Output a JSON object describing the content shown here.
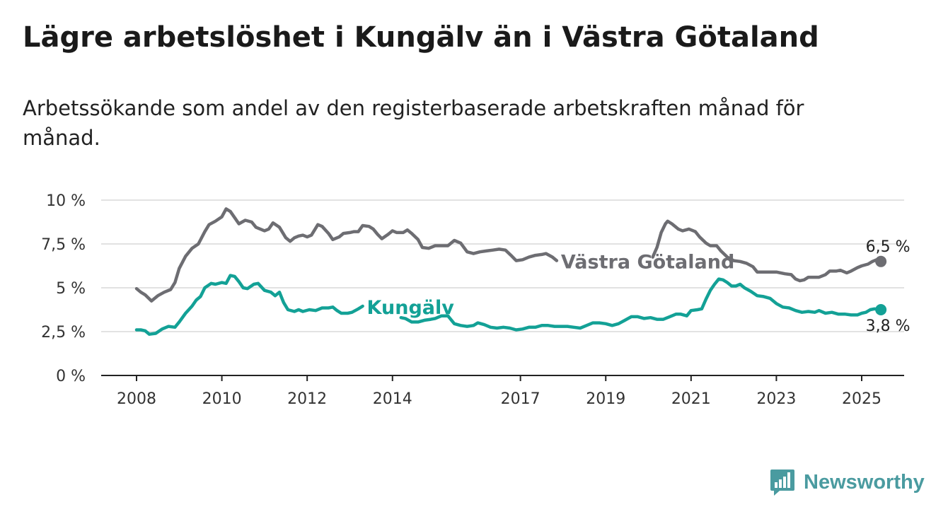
{
  "header": {
    "title": "Lägre arbetslöshet i Kungälv än i Västra Götaland",
    "subtitle": "Arbetssökande som andel av den registerbaserade arbetskraften månad för månad."
  },
  "brand": {
    "name": "Newsworthy",
    "color": "#4a9ba0",
    "icon": "bar-chart-speech-icon"
  },
  "chart_data": {
    "type": "line",
    "title": "Lägre arbetslöshet i Kungälv än i Västra Götaland",
    "subtitle": "Arbetssökande som andel av den registerbaserade arbetskraften månad för månad.",
    "xlim": [
      2007.85,
      2026.0
    ],
    "ylim": [
      0,
      10
    ],
    "yticks": [
      0,
      2.5,
      5,
      7.5,
      10
    ],
    "ytick_labels": [
      "0 %",
      "2,5 %",
      "5 %",
      "7,5 %",
      "10 %"
    ],
    "xticks": [
      2008,
      2010,
      2012,
      2014,
      2017,
      2019,
      2021,
      2023,
      2025
    ],
    "xtick_labels": [
      "2008",
      "2010",
      "2012",
      "2014",
      "2017",
      "2019",
      "2021",
      "2023",
      "2025"
    ],
    "grid": true,
    "legend": "inline labels",
    "series": [
      {
        "name": "Västra Götaland",
        "color": "#6d6d72",
        "end_label": "6,5 %",
        "points": [
          [
            2008.0,
            4.95
          ],
          [
            2008.1,
            4.75
          ],
          [
            2008.2,
            4.6
          ],
          [
            2008.35,
            4.25
          ],
          [
            2008.5,
            4.55
          ],
          [
            2008.65,
            4.75
          ],
          [
            2008.8,
            4.9
          ],
          [
            2008.9,
            5.3
          ],
          [
            2009.0,
            6.1
          ],
          [
            2009.15,
            6.8
          ],
          [
            2009.3,
            7.25
          ],
          [
            2009.45,
            7.5
          ],
          [
            2009.6,
            8.2
          ],
          [
            2009.7,
            8.6
          ],
          [
            2009.85,
            8.8
          ],
          [
            2010.0,
            9.05
          ],
          [
            2010.1,
            9.5
          ],
          [
            2010.2,
            9.35
          ],
          [
            2010.3,
            9.0
          ],
          [
            2010.4,
            8.65
          ],
          [
            2010.55,
            8.85
          ],
          [
            2010.7,
            8.75
          ],
          [
            2010.8,
            8.45
          ],
          [
            2011.0,
            8.25
          ],
          [
            2011.1,
            8.35
          ],
          [
            2011.2,
            8.7
          ],
          [
            2011.35,
            8.45
          ],
          [
            2011.5,
            7.85
          ],
          [
            2011.6,
            7.65
          ],
          [
            2011.7,
            7.85
          ],
          [
            2011.8,
            7.95
          ],
          [
            2011.9,
            8.0
          ],
          [
            2012.0,
            7.9
          ],
          [
            2012.1,
            8.0
          ],
          [
            2012.25,
            8.6
          ],
          [
            2012.35,
            8.5
          ],
          [
            2012.5,
            8.1
          ],
          [
            2012.6,
            7.75
          ],
          [
            2012.75,
            7.9
          ],
          [
            2012.85,
            8.1
          ],
          [
            2013.0,
            8.15
          ],
          [
            2013.1,
            8.2
          ],
          [
            2013.2,
            8.2
          ],
          [
            2013.3,
            8.55
          ],
          [
            2013.45,
            8.5
          ],
          [
            2013.55,
            8.35
          ],
          [
            2013.65,
            8.05
          ],
          [
            2013.75,
            7.8
          ],
          [
            2013.9,
            8.05
          ],
          [
            2014.0,
            8.25
          ],
          [
            2014.1,
            8.15
          ],
          [
            2014.25,
            8.15
          ],
          [
            2014.35,
            8.3
          ],
          [
            2014.45,
            8.1
          ],
          [
            2014.6,
            7.75
          ],
          [
            2014.7,
            7.3
          ],
          [
            2014.85,
            7.25
          ],
          [
            2015.0,
            7.4
          ],
          [
            2015.15,
            7.4
          ],
          [
            2015.3,
            7.4
          ],
          [
            2015.45,
            7.7
          ],
          [
            2015.6,
            7.55
          ],
          [
            2015.75,
            7.05
          ],
          [
            2015.9,
            6.95
          ],
          [
            2016.05,
            7.05
          ],
          [
            2016.2,
            7.1
          ],
          [
            2016.35,
            7.15
          ],
          [
            2016.5,
            7.2
          ],
          [
            2016.65,
            7.15
          ],
          [
            2016.8,
            6.8
          ],
          [
            2016.9,
            6.55
          ],
          [
            2017.05,
            6.6
          ],
          [
            2017.2,
            6.75
          ],
          [
            2017.35,
            6.85
          ],
          [
            2017.5,
            6.9
          ],
          [
            2017.6,
            6.95
          ],
          [
            2017.75,
            6.75
          ],
          [
            2017.85,
            6.55
          ]
        ],
        "points_2": [
          [
            2020.1,
            6.75
          ],
          [
            2020.2,
            7.3
          ],
          [
            2020.3,
            8.15
          ],
          [
            2020.4,
            8.65
          ],
          [
            2020.45,
            8.8
          ],
          [
            2020.55,
            8.65
          ],
          [
            2020.7,
            8.35
          ],
          [
            2020.8,
            8.25
          ],
          [
            2020.95,
            8.35
          ],
          [
            2021.1,
            8.2
          ],
          [
            2021.2,
            7.9
          ],
          [
            2021.35,
            7.55
          ],
          [
            2021.45,
            7.4
          ],
          [
            2021.6,
            7.4
          ],
          [
            2021.7,
            7.1
          ],
          [
            2021.85,
            6.75
          ],
          [
            2022.0,
            6.55
          ],
          [
            2022.15,
            6.5
          ],
          [
            2022.3,
            6.4
          ],
          [
            2022.45,
            6.2
          ],
          [
            2022.55,
            5.9
          ],
          [
            2022.7,
            5.9
          ],
          [
            2022.85,
            5.9
          ],
          [
            2023.0,
            5.9
          ],
          [
            2023.1,
            5.85
          ],
          [
            2023.2,
            5.8
          ],
          [
            2023.35,
            5.75
          ],
          [
            2023.45,
            5.5
          ],
          [
            2023.55,
            5.4
          ],
          [
            2023.65,
            5.45
          ],
          [
            2023.75,
            5.6
          ],
          [
            2023.9,
            5.6
          ],
          [
            2024.0,
            5.6
          ],
          [
            2024.15,
            5.75
          ],
          [
            2024.25,
            5.95
          ],
          [
            2024.4,
            5.95
          ],
          [
            2024.5,
            6.0
          ],
          [
            2024.65,
            5.85
          ],
          [
            2024.75,
            5.95
          ],
          [
            2024.9,
            6.15
          ],
          [
            2025.0,
            6.25
          ],
          [
            2025.15,
            6.35
          ],
          [
            2025.25,
            6.5
          ],
          [
            2025.35,
            6.6
          ],
          [
            2025.45,
            6.5
          ]
        ]
      },
      {
        "name": "Kungälv",
        "color": "#13a196",
        "end_label": "3,8 %",
        "points": [
          [
            2008.0,
            2.6
          ],
          [
            2008.1,
            2.6
          ],
          [
            2008.2,
            2.55
          ],
          [
            2008.3,
            2.35
          ],
          [
            2008.45,
            2.4
          ],
          [
            2008.6,
            2.65
          ],
          [
            2008.75,
            2.8
          ],
          [
            2008.9,
            2.75
          ],
          [
            2009.0,
            3.05
          ],
          [
            2009.15,
            3.55
          ],
          [
            2009.3,
            3.95
          ],
          [
            2009.4,
            4.3
          ],
          [
            2009.5,
            4.5
          ],
          [
            2009.6,
            5.0
          ],
          [
            2009.75,
            5.25
          ],
          [
            2009.85,
            5.2
          ],
          [
            2010.0,
            5.3
          ],
          [
            2010.1,
            5.25
          ],
          [
            2010.2,
            5.7
          ],
          [
            2010.3,
            5.65
          ],
          [
            2010.4,
            5.35
          ],
          [
            2010.5,
            5.0
          ],
          [
            2010.6,
            4.95
          ],
          [
            2010.75,
            5.2
          ],
          [
            2010.85,
            5.25
          ],
          [
            2011.0,
            4.85
          ],
          [
            2011.15,
            4.75
          ],
          [
            2011.25,
            4.55
          ],
          [
            2011.35,
            4.75
          ],
          [
            2011.45,
            4.15
          ],
          [
            2011.55,
            3.75
          ],
          [
            2011.7,
            3.65
          ],
          [
            2011.8,
            3.75
          ],
          [
            2011.9,
            3.65
          ],
          [
            2012.05,
            3.75
          ],
          [
            2012.2,
            3.7
          ],
          [
            2012.35,
            3.85
          ],
          [
            2012.5,
            3.85
          ],
          [
            2012.6,
            3.9
          ],
          [
            2012.7,
            3.7
          ],
          [
            2012.8,
            3.55
          ],
          [
            2012.95,
            3.55
          ],
          [
            2013.05,
            3.6
          ],
          [
            2013.2,
            3.8
          ],
          [
            2013.3,
            3.95
          ]
        ],
        "points_2": [
          [
            2014.2,
            3.3
          ],
          [
            2014.3,
            3.25
          ],
          [
            2014.45,
            3.05
          ],
          [
            2014.6,
            3.05
          ],
          [
            2014.75,
            3.15
          ],
          [
            2014.9,
            3.2
          ],
          [
            2015.0,
            3.25
          ],
          [
            2015.15,
            3.4
          ],
          [
            2015.3,
            3.4
          ],
          [
            2015.45,
            2.95
          ],
          [
            2015.6,
            2.85
          ],
          [
            2015.75,
            2.8
          ],
          [
            2015.9,
            2.85
          ],
          [
            2016.0,
            3.0
          ],
          [
            2016.15,
            2.9
          ],
          [
            2016.3,
            2.75
          ],
          [
            2016.45,
            2.7
          ],
          [
            2016.6,
            2.75
          ],
          [
            2016.75,
            2.7
          ],
          [
            2016.9,
            2.6
          ],
          [
            2017.05,
            2.65
          ],
          [
            2017.2,
            2.75
          ],
          [
            2017.35,
            2.75
          ],
          [
            2017.5,
            2.85
          ],
          [
            2017.65,
            2.85
          ],
          [
            2017.8,
            2.8
          ],
          [
            2017.95,
            2.8
          ],
          [
            2018.1,
            2.8
          ],
          [
            2018.25,
            2.75
          ],
          [
            2018.4,
            2.7
          ],
          [
            2018.55,
            2.85
          ],
          [
            2018.7,
            3.0
          ],
          [
            2018.85,
            3.0
          ],
          [
            2019.0,
            2.95
          ],
          [
            2019.15,
            2.85
          ],
          [
            2019.3,
            2.95
          ],
          [
            2019.45,
            3.15
          ],
          [
            2019.6,
            3.35
          ],
          [
            2019.75,
            3.35
          ],
          [
            2019.9,
            3.25
          ],
          [
            2020.05,
            3.3
          ],
          [
            2020.2,
            3.2
          ],
          [
            2020.35,
            3.2
          ],
          [
            2020.5,
            3.35
          ],
          [
            2020.65,
            3.5
          ],
          [
            2020.75,
            3.5
          ],
          [
            2020.9,
            3.4
          ],
          [
            2021.0,
            3.7
          ],
          [
            2021.15,
            3.75
          ],
          [
            2021.25,
            3.8
          ],
          [
            2021.35,
            4.35
          ],
          [
            2021.45,
            4.85
          ],
          [
            2021.55,
            5.2
          ],
          [
            2021.65,
            5.5
          ],
          [
            2021.75,
            5.45
          ],
          [
            2021.85,
            5.3
          ],
          [
            2021.95,
            5.1
          ],
          [
            2022.05,
            5.1
          ],
          [
            2022.15,
            5.2
          ],
          [
            2022.25,
            5.0
          ],
          [
            2022.4,
            4.8
          ],
          [
            2022.55,
            4.55
          ],
          [
            2022.7,
            4.5
          ],
          [
            2022.85,
            4.4
          ],
          [
            2023.0,
            4.1
          ],
          [
            2023.15,
            3.9
          ],
          [
            2023.3,
            3.85
          ],
          [
            2023.45,
            3.7
          ],
          [
            2023.6,
            3.6
          ],
          [
            2023.75,
            3.65
          ],
          [
            2023.9,
            3.6
          ],
          [
            2024.0,
            3.7
          ],
          [
            2024.15,
            3.55
          ],
          [
            2024.3,
            3.6
          ],
          [
            2024.45,
            3.5
          ],
          [
            2024.6,
            3.5
          ],
          [
            2024.75,
            3.45
          ],
          [
            2024.9,
            3.45
          ],
          [
            2025.0,
            3.55
          ],
          [
            2025.1,
            3.6
          ],
          [
            2025.2,
            3.75
          ],
          [
            2025.3,
            3.8
          ],
          [
            2025.45,
            3.75
          ]
        ]
      }
    ]
  }
}
